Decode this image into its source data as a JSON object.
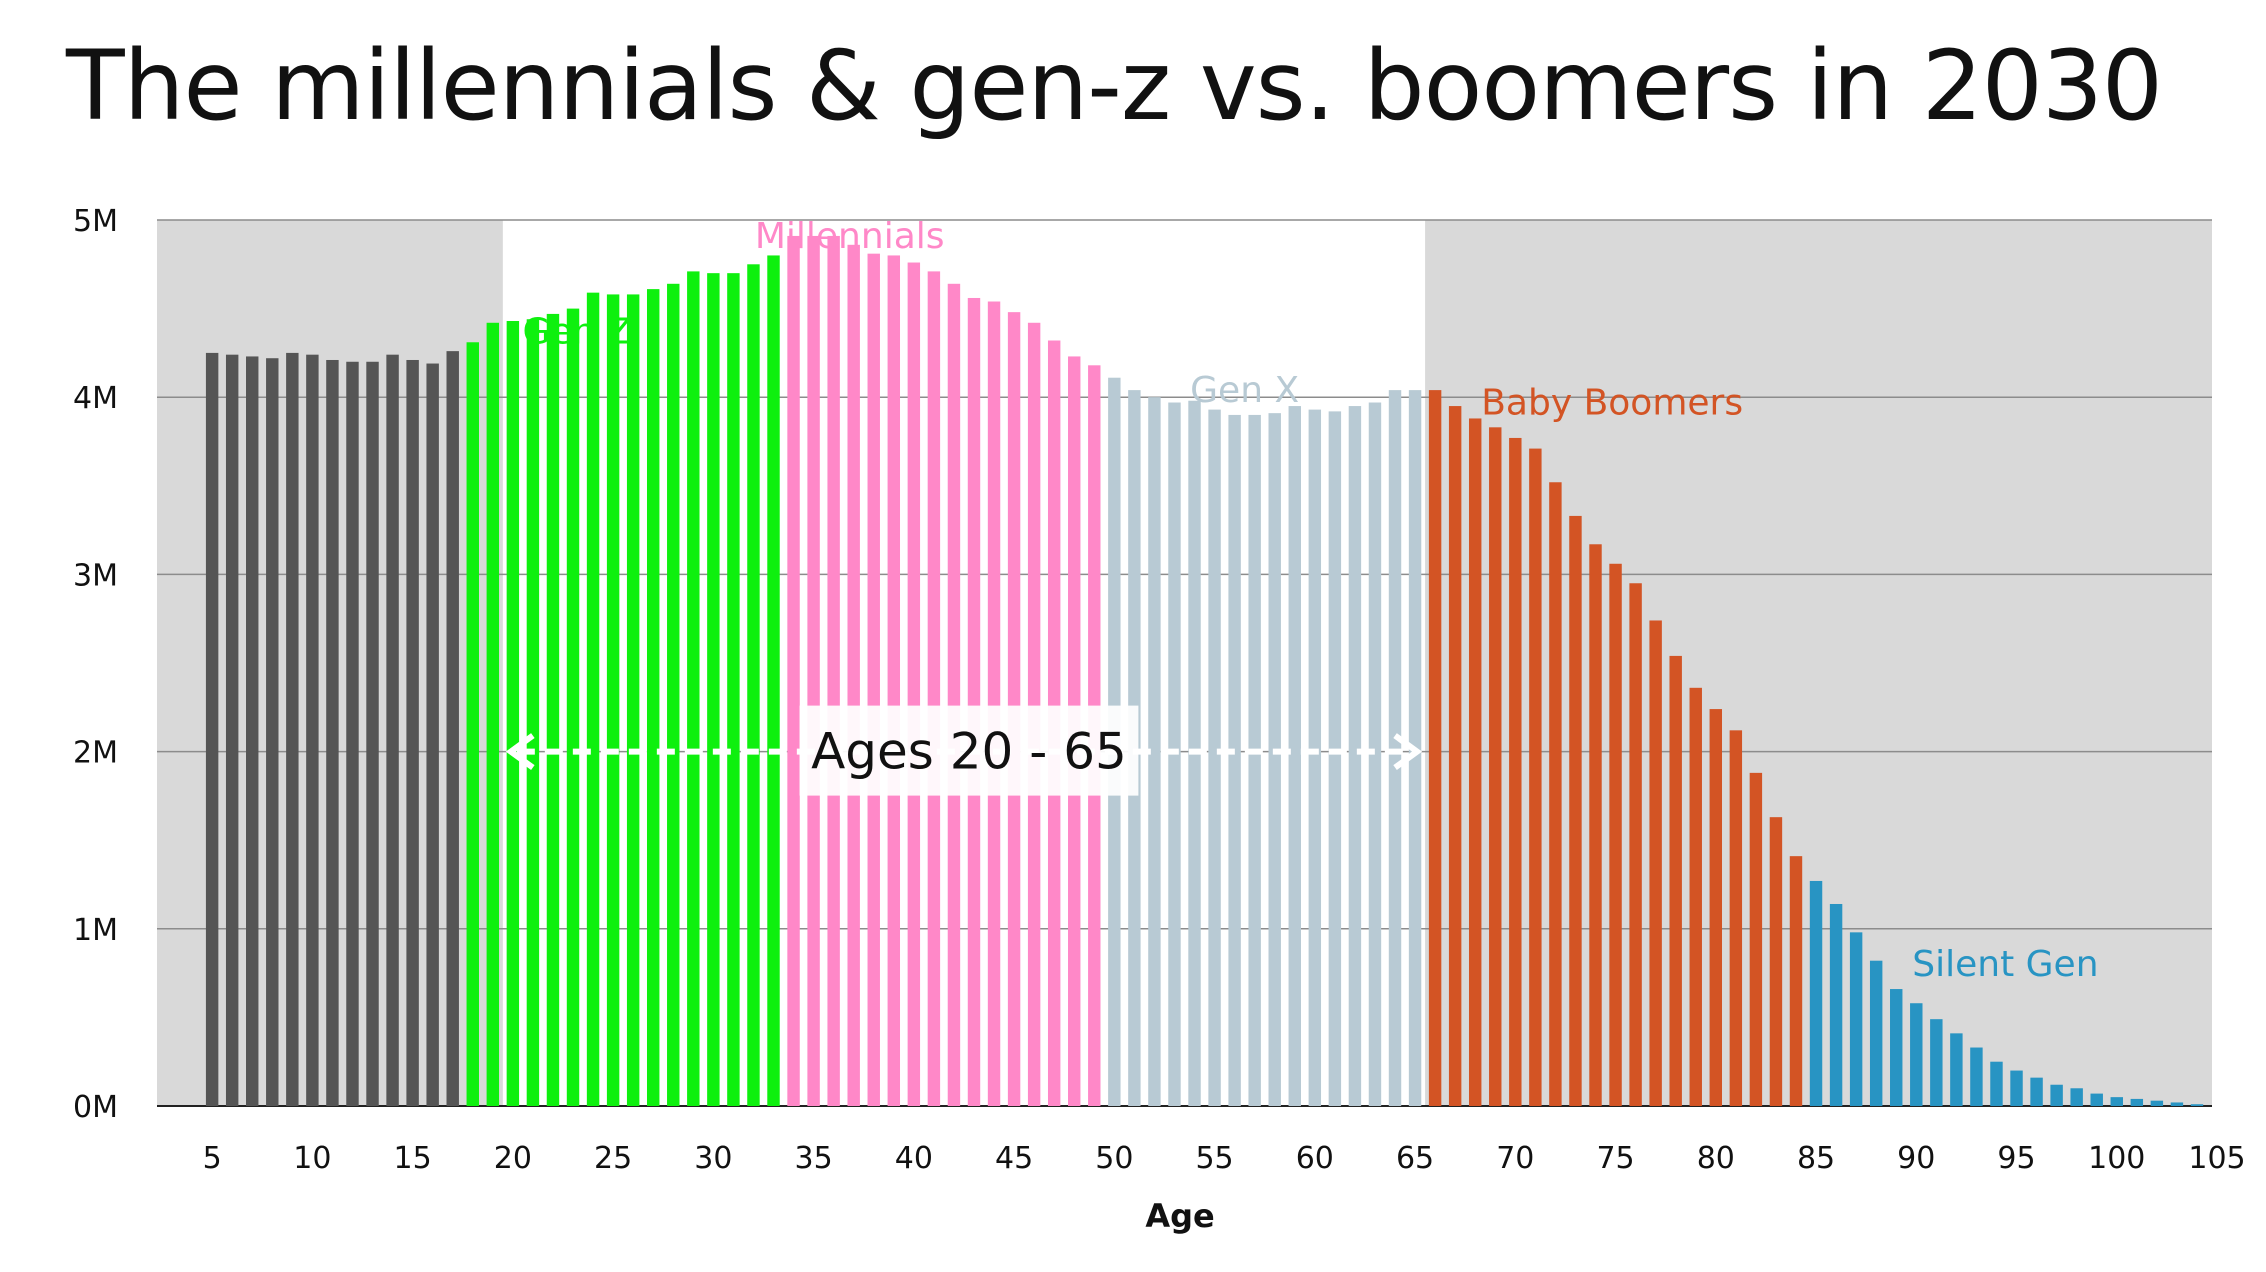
{
  "title": "The millennials & gen-z vs. boomers in 2030",
  "chart_data": {
    "type": "bar",
    "xlabel": "Age",
    "ylabel": "",
    "ylim": [
      0,
      5000000
    ],
    "y_ticks": [
      "0M",
      "1M",
      "2M",
      "3M",
      "4M",
      "5M"
    ],
    "x_ticks": [
      "5",
      "10",
      "15",
      "20",
      "25",
      "30",
      "35",
      "40",
      "45",
      "50",
      "55",
      "60",
      "65",
      "70",
      "75",
      "80",
      "85",
      "90",
      "95",
      "100",
      "105"
    ],
    "grid": true,
    "ages": [
      5,
      6,
      7,
      8,
      9,
      10,
      11,
      12,
      13,
      14,
      15,
      16,
      17,
      18,
      19,
      20,
      21,
      22,
      23,
      24,
      25,
      26,
      27,
      28,
      29,
      30,
      31,
      32,
      33,
      34,
      35,
      36,
      37,
      38,
      39,
      40,
      41,
      42,
      43,
      44,
      45,
      46,
      47,
      48,
      49,
      50,
      51,
      52,
      53,
      54,
      55,
      56,
      57,
      58,
      59,
      60,
      61,
      62,
      63,
      64,
      65,
      66,
      67,
      68,
      69,
      70,
      71,
      72,
      73,
      74,
      75,
      76,
      77,
      78,
      79,
      80,
      81,
      82,
      83,
      84,
      85,
      86,
      87,
      88,
      89,
      90,
      91,
      92,
      93,
      94,
      95,
      96,
      97,
      98,
      99,
      100,
      101,
      102,
      103,
      104,
      105
    ],
    "values": [
      4250000,
      4240000,
      4230000,
      4220000,
      4250000,
      4240000,
      4210000,
      4200000,
      4200000,
      4240000,
      4210000,
      4190000,
      4260000,
      4310000,
      4420000,
      4430000,
      4440000,
      4470000,
      4500000,
      4590000,
      4580000,
      4580000,
      4610000,
      4640000,
      4710000,
      4700000,
      4700000,
      4750000,
      4800000,
      4910000,
      4910000,
      4910000,
      4860000,
      4810000,
      4800000,
      4760000,
      4710000,
      4640000,
      4560000,
      4540000,
      4480000,
      4420000,
      4320000,
      4230000,
      4180000,
      4110000,
      4040000,
      4000000,
      3970000,
      3980000,
      3930000,
      3900000,
      3900000,
      3910000,
      3950000,
      3930000,
      3920000,
      3950000,
      3970000,
      4040000,
      4040000,
      4040000,
      3950000,
      3880000,
      3830000,
      3770000,
      3710000,
      3520000,
      3330000,
      3170000,
      3060000,
      2950000,
      2740000,
      2540000,
      2360000,
      2240000,
      2120000,
      1880000,
      1630000,
      1410000,
      1270000,
      1140000,
      980000,
      820000,
      660000,
      580000,
      490000,
      410000,
      330000,
      250000,
      200000,
      160000,
      120000,
      100000,
      70000,
      50000,
      40000,
      30000,
      20000,
      10000,
      0
    ],
    "series": [
      {
        "name": "",
        "color": "#555555",
        "age_from": 5,
        "age_to": 17
      },
      {
        "name": "Gen Z",
        "color": "#0ef00e",
        "age_from": 18,
        "age_to": 33
      },
      {
        "name": "Millennials",
        "color": "#ff88c8",
        "age_from": 34,
        "age_to": 49
      },
      {
        "name": "Gen X",
        "color": "#b8cad4",
        "age_from": 50,
        "age_to": 65
      },
      {
        "name": "Baby Boomers",
        "color": "#d35424",
        "age_from": 66,
        "age_to": 84
      },
      {
        "name": "Silent Gen",
        "color": "#2894c3",
        "age_from": 85,
        "age_to": 105
      }
    ],
    "highlight_range": {
      "label": "Ages 20 - 65",
      "from": 20,
      "to": 65
    }
  }
}
